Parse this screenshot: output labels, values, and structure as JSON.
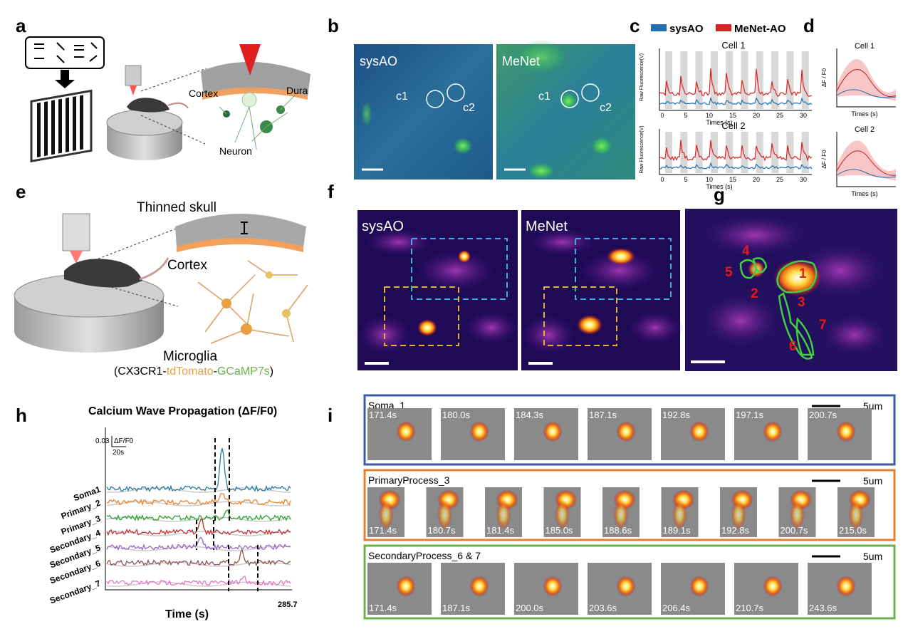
{
  "figure": {
    "a": {
      "label": "a",
      "cortex": "Cortex",
      "dura": "Dura",
      "neuron": "Neuron"
    },
    "b": {
      "label": "b",
      "left_title": "sysAO",
      "right_title": "MeNet",
      "rois": [
        "c1",
        "c2",
        "c1",
        "c2"
      ]
    },
    "c": {
      "label": "c",
      "legend": [
        "sysAO",
        "MeNet-AO"
      ],
      "cells": [
        "Cell 1",
        "Cell 2"
      ],
      "ylabel": "Raw Fluorescence(V)",
      "xlabel": "Times (s)",
      "xticks": [
        0,
        5,
        10,
        15,
        20,
        25,
        30
      ]
    },
    "d": {
      "label": "d",
      "cells": [
        "Cell 1",
        "Cell 2"
      ],
      "ylabel": "ΔF / F0",
      "xlabel": "Times (s)"
    },
    "e": {
      "label": "e",
      "skull": "Thinned skull",
      "cortex": "Cortex",
      "microglia": "Microglia",
      "construct": [
        "(CX3CR1-",
        "tdTomato",
        "-",
        "GCaMP7s",
        ")"
      ]
    },
    "f": {
      "label": "f",
      "left_title": "sysAO",
      "right_title": "MeNet"
    },
    "g": {
      "label": "g",
      "rois": [
        "1",
        "2",
        "3",
        "4",
        "5",
        "6",
        "7"
      ]
    },
    "h": {
      "label": "h",
      "title": "Calcium Wave Propagation (ΔF/F0)",
      "traces": [
        "Soma1",
        "Primary_2",
        "Primary_3",
        "Secondary_4",
        "Secondary_5",
        "Secondary_6",
        "Secondary_7"
      ],
      "scale_y": "0.03",
      "scale_unit": "ΔF/F0",
      "scale_x": "20s",
      "xlabel": "Time (s)",
      "xend": 285.7
    },
    "i": {
      "label": "i",
      "rows": [
        {
          "title": "Soma_1",
          "scale": "5um",
          "color": "#3b5ba5",
          "times": [
            "171.4s",
            "180.0s",
            "184.3s",
            "187.1s",
            "192.8s",
            "197.1s",
            "200.7s"
          ]
        },
        {
          "title": "PrimaryProcess_3",
          "scale": "5um",
          "color": "#e87d2f",
          "times": [
            "171.4s",
            "180.7s",
            "181.4s",
            "185.0s",
            "188.6s",
            "189.1s",
            "192.8s",
            "200.7s",
            "215.0s"
          ]
        },
        {
          "title": "SecondaryProcess_6 & 7",
          "scale": "5um",
          "color": "#6ab04c",
          "times": [
            "171.4s",
            "187.1s",
            "200.0s",
            "203.6s",
            "206.4s",
            "210.7s",
            "243.6s"
          ]
        }
      ]
    }
  }
}
